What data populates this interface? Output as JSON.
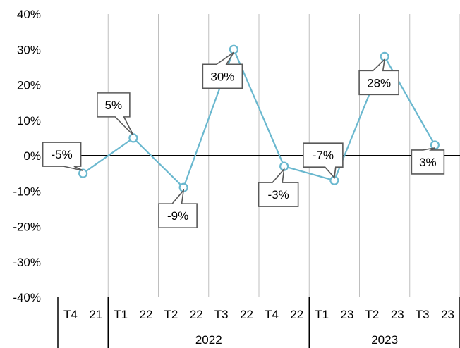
{
  "chart_data": {
    "type": "line",
    "y_ticks": [
      "40%",
      "30%",
      "20%",
      "10%",
      "0%",
      "-10%",
      "-20%",
      "-30%",
      "-40%"
    ],
    "ylim": [
      -40,
      40
    ],
    "grid": "vertical",
    "points": [
      {
        "quarter": "T4",
        "year": "21",
        "value": -5,
        "label": "-5%"
      },
      {
        "quarter": "T1",
        "year": "22",
        "value": 5,
        "label": "5%"
      },
      {
        "quarter": "T2",
        "year": "22",
        "value": -9,
        "label": "-9%"
      },
      {
        "quarter": "T3",
        "year": "22",
        "value": 30,
        "label": "30%"
      },
      {
        "quarter": "T4",
        "year": "22",
        "value": -3,
        "label": "-3%"
      },
      {
        "quarter": "T1",
        "year": "23",
        "value": -7,
        "label": "-7%"
      },
      {
        "quarter": "T2",
        "year": "23",
        "value": 28,
        "label": "28%"
      },
      {
        "quarter": "T3",
        "year": "23",
        "value": 3,
        "label": "3%"
      }
    ],
    "groups": [
      {
        "label": "2022"
      },
      {
        "label": "2023"
      }
    ],
    "colors": {
      "line": "#6ab8cf",
      "axis": "#000000",
      "grid": "#bfbfbf",
      "callout_border": "#595959"
    }
  }
}
